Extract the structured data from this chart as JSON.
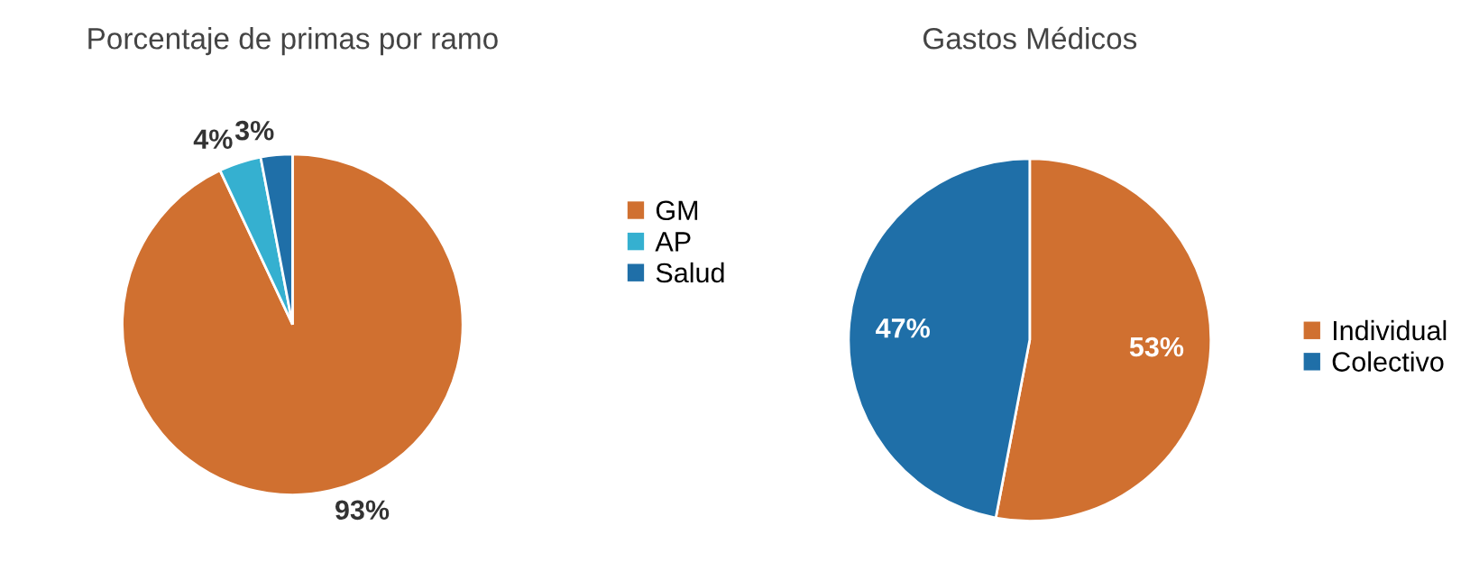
{
  "chart_data": [
    {
      "type": "pie",
      "title": "Porcentaje de primas por ramo",
      "categories": [
        "GM",
        "AP",
        "Salud"
      ],
      "values": [
        93,
        4,
        3
      ],
      "colors": [
        "#d07030",
        "#35b0d0",
        "#1f6fa8"
      ],
      "value_labels": [
        "93%",
        "4%",
        "3%"
      ],
      "legend": "right"
    },
    {
      "type": "pie",
      "title": "Gastos Médicos",
      "categories": [
        "Individual",
        "Colectivo"
      ],
      "values": [
        53,
        47
      ],
      "colors": [
        "#d07030",
        "#1f6fa8"
      ],
      "value_labels": [
        "53%",
        "47%"
      ],
      "legend": "right"
    }
  ]
}
